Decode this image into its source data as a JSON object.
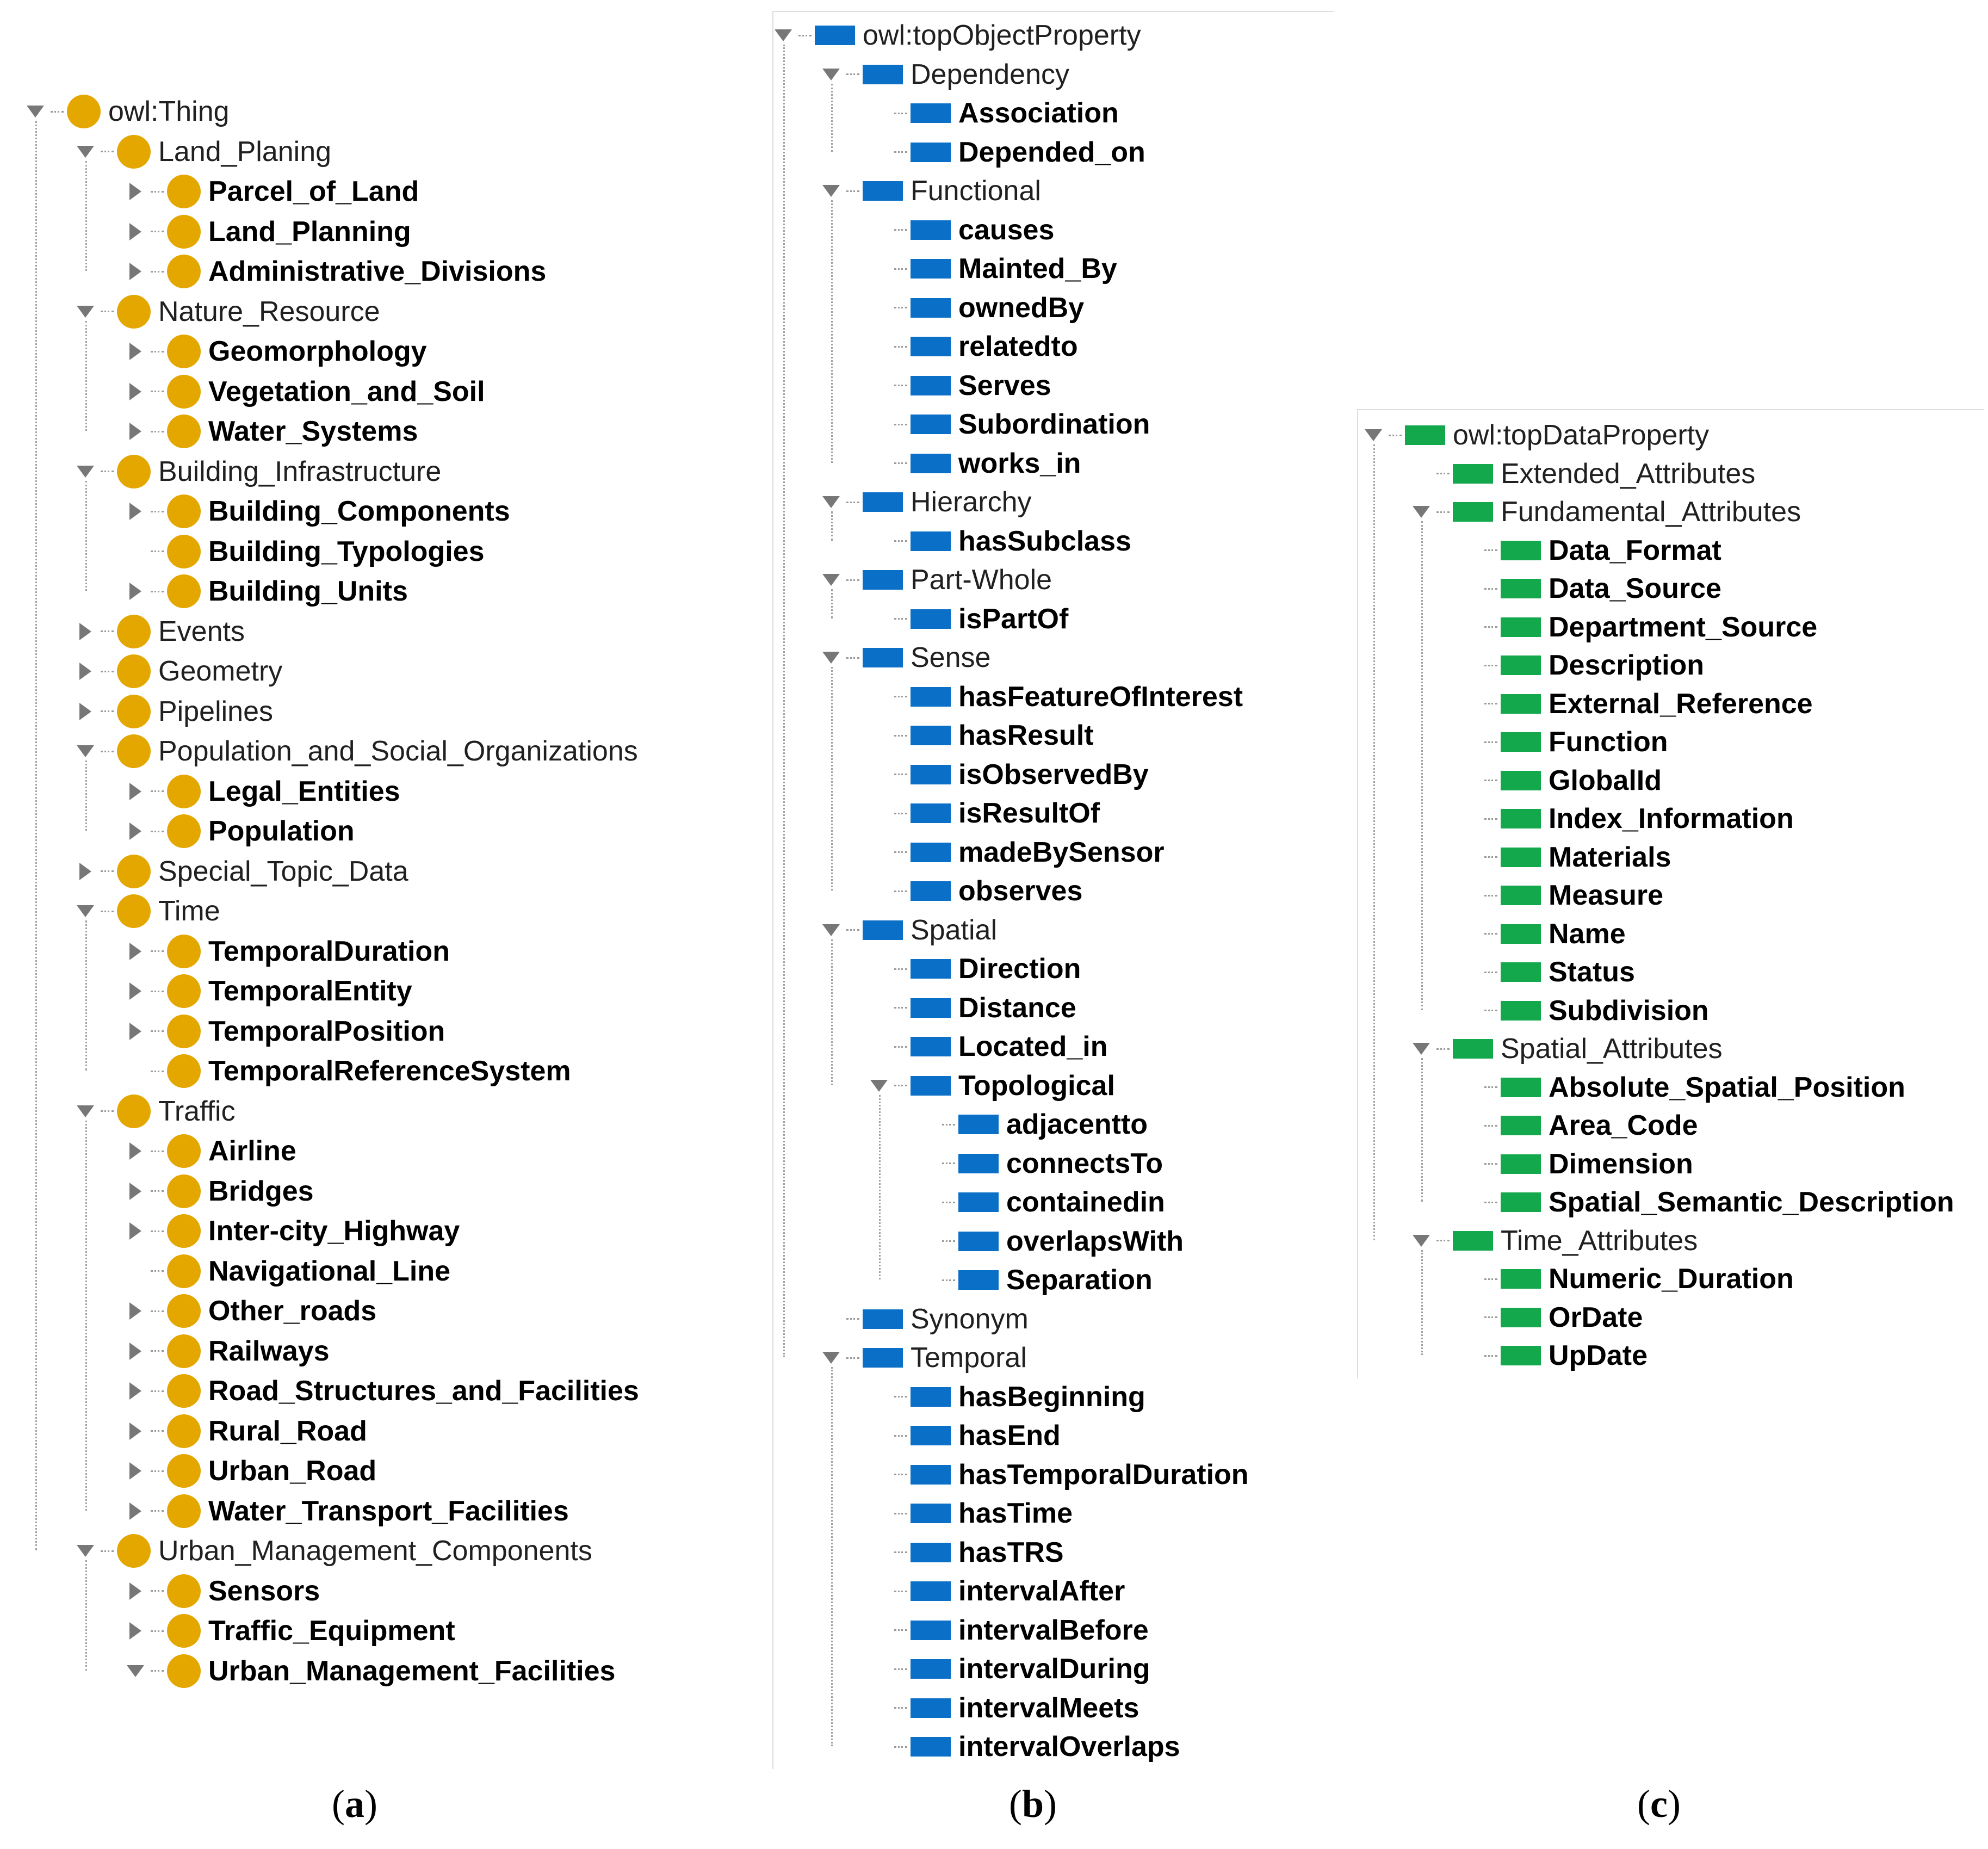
{
  "captions": {
    "a": "a",
    "b": "b",
    "c": "c"
  },
  "class_tree": {
    "root": "owl:Thing",
    "items": [
      {
        "label": "Land_Planing",
        "level": 1,
        "state": "expanded",
        "bold": false
      },
      {
        "label": "Parcel_of_Land",
        "level": 2,
        "state": "collapsed",
        "bold": true
      },
      {
        "label": "Land_Planning",
        "level": 2,
        "state": "collapsed",
        "bold": true
      },
      {
        "label": "Administrative_Divisions",
        "level": 2,
        "state": "collapsed",
        "bold": true
      },
      {
        "label": "Nature_Resource",
        "level": 1,
        "state": "expanded",
        "bold": false
      },
      {
        "label": "Geomorphology",
        "level": 2,
        "state": "collapsed",
        "bold": true
      },
      {
        "label": "Vegetation_and_Soil",
        "level": 2,
        "state": "collapsed",
        "bold": true
      },
      {
        "label": "Water_Systems",
        "level": 2,
        "state": "collapsed",
        "bold": true
      },
      {
        "label": "Building_Infrastructure",
        "level": 1,
        "state": "expanded",
        "bold": false
      },
      {
        "label": "Building_Components",
        "level": 2,
        "state": "collapsed",
        "bold": true
      },
      {
        "label": "Building_Typologies",
        "level": 2,
        "state": "leaf",
        "bold": true
      },
      {
        "label": "Building_Units",
        "level": 2,
        "state": "collapsed",
        "bold": true
      },
      {
        "label": "Events",
        "level": 1,
        "state": "collapsed",
        "bold": false
      },
      {
        "label": "Geometry",
        "level": 1,
        "state": "collapsed",
        "bold": false
      },
      {
        "label": "Pipelines",
        "level": 1,
        "state": "collapsed",
        "bold": false
      },
      {
        "label": "Population_and_Social_Organizations",
        "level": 1,
        "state": "expanded",
        "bold": false
      },
      {
        "label": "Legal_Entities",
        "level": 2,
        "state": "collapsed",
        "bold": true
      },
      {
        "label": "Population",
        "level": 2,
        "state": "collapsed",
        "bold": true
      },
      {
        "label": "Special_Topic_Data",
        "level": 1,
        "state": "collapsed",
        "bold": false
      },
      {
        "label": "Time",
        "level": 1,
        "state": "expanded",
        "bold": false
      },
      {
        "label": "TemporalDuration",
        "level": 2,
        "state": "collapsed",
        "bold": true
      },
      {
        "label": "TemporalEntity",
        "level": 2,
        "state": "collapsed",
        "bold": true
      },
      {
        "label": "TemporalPosition",
        "level": 2,
        "state": "collapsed",
        "bold": true
      },
      {
        "label": "TemporalReferenceSystem",
        "level": 2,
        "state": "leaf",
        "bold": true
      },
      {
        "label": "Traffic",
        "level": 1,
        "state": "expanded",
        "bold": false
      },
      {
        "label": "Airline",
        "level": 2,
        "state": "collapsed",
        "bold": true
      },
      {
        "label": "Bridges",
        "level": 2,
        "state": "collapsed",
        "bold": true
      },
      {
        "label": "Inter-city_Highway",
        "level": 2,
        "state": "collapsed",
        "bold": true
      },
      {
        "label": "Navigational_Line",
        "level": 2,
        "state": "leaf",
        "bold": true
      },
      {
        "label": "Other_roads",
        "level": 2,
        "state": "collapsed",
        "bold": true
      },
      {
        "label": "Railways",
        "level": 2,
        "state": "collapsed",
        "bold": true
      },
      {
        "label": "Road_Structures_and_Facilities",
        "level": 2,
        "state": "collapsed",
        "bold": true
      },
      {
        "label": "Rural_Road",
        "level": 2,
        "state": "collapsed",
        "bold": true
      },
      {
        "label": "Urban_Road",
        "level": 2,
        "state": "collapsed",
        "bold": true
      },
      {
        "label": "Water_Transport_Facilities",
        "level": 2,
        "state": "collapsed",
        "bold": true
      },
      {
        "label": "Urban_Management_Components",
        "level": 1,
        "state": "expanded",
        "bold": false
      },
      {
        "label": "Sensors",
        "level": 2,
        "state": "collapsed",
        "bold": true
      },
      {
        "label": "Traffic_Equipment",
        "level": 2,
        "state": "collapsed",
        "bold": true
      },
      {
        "label": "Urban_Management_Facilities",
        "level": 2,
        "state": "expanded",
        "bold": true
      }
    ]
  },
  "object_property_tree": {
    "root": "owl:topObjectProperty",
    "items": [
      {
        "label": "Dependency",
        "level": 1,
        "state": "expanded",
        "bold": false
      },
      {
        "label": "Association",
        "level": 2,
        "state": "leaf",
        "bold": true
      },
      {
        "label": "Depended_on",
        "level": 2,
        "state": "leaf",
        "bold": true
      },
      {
        "label": "Functional",
        "level": 1,
        "state": "expanded",
        "bold": false
      },
      {
        "label": "causes",
        "level": 2,
        "state": "leaf",
        "bold": true
      },
      {
        "label": "Mainted_By",
        "level": 2,
        "state": "leaf",
        "bold": true
      },
      {
        "label": "ownedBy",
        "level": 2,
        "state": "leaf",
        "bold": true
      },
      {
        "label": "relatedto",
        "level": 2,
        "state": "leaf",
        "bold": true
      },
      {
        "label": "Serves",
        "level": 2,
        "state": "leaf",
        "bold": true
      },
      {
        "label": "Subordination",
        "level": 2,
        "state": "leaf",
        "bold": true
      },
      {
        "label": "works_in",
        "level": 2,
        "state": "leaf",
        "bold": true
      },
      {
        "label": "Hierarchy",
        "level": 1,
        "state": "expanded",
        "bold": false
      },
      {
        "label": "hasSubclass",
        "level": 2,
        "state": "leaf",
        "bold": true
      },
      {
        "label": "Part-Whole",
        "level": 1,
        "state": "expanded",
        "bold": false
      },
      {
        "label": "isPartOf",
        "level": 2,
        "state": "leaf",
        "bold": true
      },
      {
        "label": "Sense",
        "level": 1,
        "state": "expanded",
        "bold": false
      },
      {
        "label": "hasFeatureOfInterest",
        "level": 2,
        "state": "leaf",
        "bold": true
      },
      {
        "label": "hasResult",
        "level": 2,
        "state": "leaf",
        "bold": true
      },
      {
        "label": "isObservedBy",
        "level": 2,
        "state": "leaf",
        "bold": true
      },
      {
        "label": "isResultOf",
        "level": 2,
        "state": "leaf",
        "bold": true
      },
      {
        "label": "madeBySensor",
        "level": 2,
        "state": "leaf",
        "bold": true
      },
      {
        "label": "observes",
        "level": 2,
        "state": "leaf",
        "bold": true
      },
      {
        "label": "Spatial",
        "level": 1,
        "state": "expanded",
        "bold": false
      },
      {
        "label": "Direction",
        "level": 2,
        "state": "leaf",
        "bold": true
      },
      {
        "label": "Distance",
        "level": 2,
        "state": "leaf",
        "bold": true
      },
      {
        "label": "Located_in",
        "level": 2,
        "state": "leaf",
        "bold": true
      },
      {
        "label": "Topological",
        "level": 2,
        "state": "expanded",
        "bold": true
      },
      {
        "label": "adjacentto",
        "level": 3,
        "state": "leaf",
        "bold": true
      },
      {
        "label": "connectsTo",
        "level": 3,
        "state": "leaf",
        "bold": true
      },
      {
        "label": "containedin",
        "level": 3,
        "state": "leaf",
        "bold": true
      },
      {
        "label": "overlapsWith",
        "level": 3,
        "state": "leaf",
        "bold": true
      },
      {
        "label": "Separation",
        "level": 3,
        "state": "leaf",
        "bold": true
      },
      {
        "label": "Synonym",
        "level": 1,
        "state": "leaf",
        "bold": false
      },
      {
        "label": "Temporal",
        "level": 1,
        "state": "expanded",
        "bold": false
      },
      {
        "label": "hasBeginning",
        "level": 2,
        "state": "leaf",
        "bold": true
      },
      {
        "label": "hasEnd",
        "level": 2,
        "state": "leaf",
        "bold": true
      },
      {
        "label": "hasTemporalDuration",
        "level": 2,
        "state": "leaf",
        "bold": true
      },
      {
        "label": "hasTime",
        "level": 2,
        "state": "leaf",
        "bold": true
      },
      {
        "label": "hasTRS",
        "level": 2,
        "state": "leaf",
        "bold": true
      },
      {
        "label": "intervalAfter",
        "level": 2,
        "state": "leaf",
        "bold": true
      },
      {
        "label": "intervalBefore",
        "level": 2,
        "state": "leaf",
        "bold": true
      },
      {
        "label": "intervalDuring",
        "level": 2,
        "state": "leaf",
        "bold": true
      },
      {
        "label": "intervalMeets",
        "level": 2,
        "state": "leaf",
        "bold": true
      },
      {
        "label": "intervalOverlaps",
        "level": 2,
        "state": "leaf",
        "bold": true
      }
    ]
  },
  "data_property_tree": {
    "root": "owl:topDataProperty",
    "items": [
      {
        "label": "Extended_Attributes",
        "level": 1,
        "state": "leaf",
        "bold": false
      },
      {
        "label": "Fundamental_Attributes",
        "level": 1,
        "state": "expanded",
        "bold": false
      },
      {
        "label": "Data_Format",
        "level": 2,
        "state": "leaf",
        "bold": true
      },
      {
        "label": "Data_Source",
        "level": 2,
        "state": "leaf",
        "bold": true
      },
      {
        "label": "Department_Source",
        "level": 2,
        "state": "leaf",
        "bold": true
      },
      {
        "label": "Description",
        "level": 2,
        "state": "leaf",
        "bold": true
      },
      {
        "label": "External_Reference",
        "level": 2,
        "state": "leaf",
        "bold": true
      },
      {
        "label": "Function",
        "level": 2,
        "state": "leaf",
        "bold": true
      },
      {
        "label": "GlobalId",
        "level": 2,
        "state": "leaf",
        "bold": true
      },
      {
        "label": "Index_Information",
        "level": 2,
        "state": "leaf",
        "bold": true
      },
      {
        "label": "Materials",
        "level": 2,
        "state": "leaf",
        "bold": true
      },
      {
        "label": "Measure",
        "level": 2,
        "state": "leaf",
        "bold": true
      },
      {
        "label": "Name",
        "level": 2,
        "state": "leaf",
        "bold": true
      },
      {
        "label": "Status",
        "level": 2,
        "state": "leaf",
        "bold": true
      },
      {
        "label": "Subdivision",
        "level": 2,
        "state": "leaf",
        "bold": true
      },
      {
        "label": "Spatial_Attributes",
        "level": 1,
        "state": "expanded",
        "bold": false
      },
      {
        "label": "Absolute_Spatial_Position",
        "level": 2,
        "state": "leaf",
        "bold": true
      },
      {
        "label": "Area_Code",
        "level": 2,
        "state": "leaf",
        "bold": true
      },
      {
        "label": "Dimension",
        "level": 2,
        "state": "leaf",
        "bold": true
      },
      {
        "label": "Spatial_Semantic_Description",
        "level": 2,
        "state": "leaf",
        "bold": true
      },
      {
        "label": "Time_Attributes",
        "level": 1,
        "state": "expanded",
        "bold": false
      },
      {
        "label": "Numeric_Duration",
        "level": 2,
        "state": "leaf",
        "bold": true
      },
      {
        "label": "OrDate",
        "level": 2,
        "state": "leaf",
        "bold": true
      },
      {
        "label": "UpDate",
        "level": 2,
        "state": "leaf",
        "bold": true
      }
    ]
  },
  "colors": {
    "class_icon": "#e4a700",
    "object_property_icon": "#0a6fc7",
    "data_property_icon": "#13a84b",
    "expander": "#777777"
  }
}
